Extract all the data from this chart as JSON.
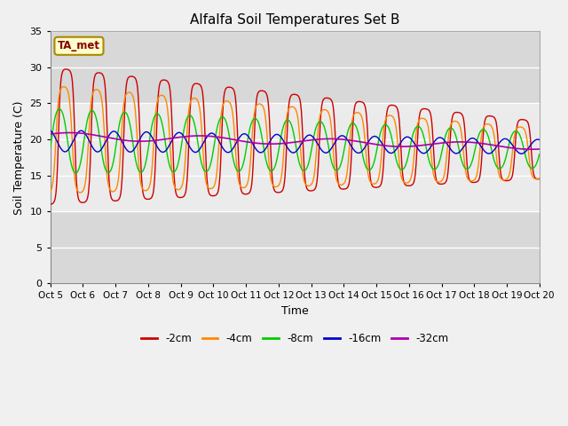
{
  "title": "Alfalfa Soil Temperatures Set B",
  "xlabel": "Time",
  "ylabel": "Soil Temperature (C)",
  "ylim": [
    0,
    35
  ],
  "yticks": [
    0,
    5,
    10,
    15,
    20,
    25,
    30,
    35
  ],
  "x_labels": [
    "Oct 5",
    "Oct 6",
    "Oct 7",
    "Oct 8",
    "Oct 9",
    "Oct 10",
    "Oct 11",
    "Oct 12",
    "Oct 13",
    "Oct 14",
    "Oct 15",
    "Oct 16",
    "Oct 17",
    "Oct 18",
    "Oct 19",
    "Oct 20"
  ],
  "colors": {
    "-2cm": "#cc0000",
    "-4cm": "#ff8800",
    "-8cm": "#00cc00",
    "-16cm": "#0000cc",
    "-32cm": "#aa00aa"
  },
  "legend_labels": [
    "-2cm",
    "-4cm",
    "-8cm",
    "-16cm",
    "-32cm"
  ],
  "ta_met_label": "TA_met",
  "background_color": "#f0f0f0",
  "plot_bg_color": "#d8d8d8",
  "grid_color": "#ffffff",
  "ta_met_bg": "#ffffcc",
  "ta_met_border": "#aa8800"
}
